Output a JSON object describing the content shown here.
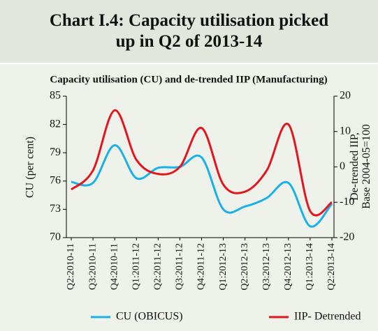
{
  "chart_data": {
    "type": "line",
    "title": "Chart I.4: Capacity utilisation picked up in Q2 of 2013-14",
    "subtitle": "Capacity utilisation (CU) and de-trended IIP (Manufacturing)",
    "y_label": "CU (per cent)",
    "y2_label": "De-trended IIP, Base 2004-05=100",
    "categories": [
      "Q2:2010-11",
      "Q3:2010-11",
      "Q4:2010-11",
      "Q1:2011-12",
      "Q2:2011-12",
      "Q3:2011-12",
      "Q4:2011-12",
      "Q1:2012-13",
      "Q2:2012-13",
      "Q3:2012-13",
      "Q4:2012-13",
      "Q1:2013-14",
      "Q2:2013-14"
    ],
    "series": [
      {
        "name": "CU (OBICUS)",
        "color": "#1ab0e8",
        "values": [
          75.9,
          75.8,
          79.8,
          76.3,
          77.4,
          77.5,
          78.5,
          73.0,
          73.3,
          74.2,
          75.8,
          71.2,
          73.6
        ]
      },
      {
        "name": "IIP- Detrended",
        "color": "#e3151f",
        "axis": "y2",
        "values": [
          -6.4,
          -1,
          16,
          2,
          -2,
          0,
          11,
          -5,
          -7,
          -1,
          12,
          -12.5,
          -10
        ]
      }
    ],
    "ylim": [
      70,
      85
    ],
    "yticks": [
      70,
      73,
      76,
      79,
      82,
      85
    ],
    "y2lim": [
      -20,
      20
    ],
    "y2ticks": [
      -20,
      -10,
      0,
      10,
      20
    ]
  }
}
